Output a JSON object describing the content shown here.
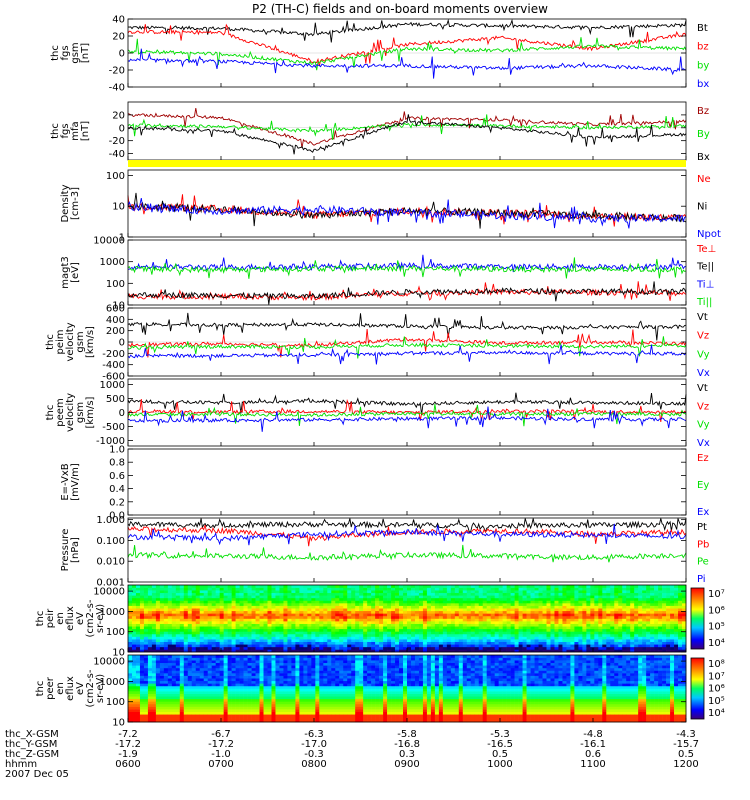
{
  "title": "P2 (TH-C) fields and on-board moments overview",
  "colors": {
    "black": "#000000",
    "red": "#ff0000",
    "green": "#00e000",
    "blue": "#0000ff",
    "darkred": "#a00000",
    "yellow": "#ffff00",
    "lightgreen": "#00ff00"
  },
  "chart_data": [
    {
      "id": "fgs-gsm",
      "type": "line",
      "ylabel": [
        "thc",
        "fgs",
        "gsm",
        "[nT]"
      ],
      "ylim": [
        -40,
        40
      ],
      "yticks": [
        "40",
        "20",
        "0",
        "-20",
        "-40"
      ],
      "legend_placement": "right",
      "series": [
        {
          "name": "Bt",
          "color": "#000000",
          "x": [
            "0600",
            "0700",
            "0800",
            "0900",
            "1000",
            "1100",
            "1200"
          ],
          "y": [
            30,
            29,
            22,
            34,
            32,
            30,
            33
          ]
        },
        {
          "name": "bz",
          "color": "#ff0000",
          "x": [
            "0600",
            "0700",
            "0800",
            "0900",
            "1000",
            "1100",
            "1200"
          ],
          "y": [
            25,
            24,
            -10,
            10,
            18,
            5,
            22
          ]
        },
        {
          "name": "by",
          "color": "#00e000",
          "x": [
            "0600",
            "0700",
            "0800",
            "0900",
            "1000",
            "1100",
            "1200"
          ],
          "y": [
            2,
            -1,
            -12,
            5,
            3,
            8,
            5
          ]
        },
        {
          "name": "bx",
          "color": "#0000ff",
          "x": [
            "0600",
            "0700",
            "0800",
            "0900",
            "1000",
            "1100",
            "1200"
          ],
          "y": [
            -8,
            -10,
            -15,
            -15,
            -18,
            -15,
            -20
          ]
        }
      ]
    },
    {
      "id": "fgs-mfa",
      "type": "line",
      "ylabel": [
        "thc",
        "fgs",
        "mfa",
        "[nT]"
      ],
      "ylim": [
        -50,
        40
      ],
      "yticks": [
        "20",
        "0",
        "-20",
        "-40"
      ],
      "legend_placement": "right",
      "series": [
        {
          "name": "Bz",
          "color": "#a00000",
          "x": [
            "0600",
            "0700",
            "0800",
            "0900",
            "1000",
            "1100",
            "1200"
          ],
          "y": [
            20,
            16,
            -25,
            15,
            12,
            5,
            10
          ]
        },
        {
          "name": "By",
          "color": "#00e000",
          "x": [
            "0600",
            "0700",
            "0800",
            "0900",
            "1000",
            "1100",
            "1200"
          ],
          "y": [
            4,
            2,
            -5,
            5,
            3,
            0,
            3
          ]
        },
        {
          "name": "Bx",
          "color": "#000000",
          "x": [
            "0600",
            "0700",
            "0800",
            "0900",
            "1000",
            "1100",
            "1200"
          ],
          "y": [
            0,
            -5,
            -35,
            10,
            0,
            -15,
            -10
          ]
        }
      ]
    },
    {
      "id": "flag-bar",
      "type": "bar",
      "color": "#ffff00"
    },
    {
      "id": "density",
      "type": "line",
      "yscale": "log",
      "ylabel": [
        "Density",
        "[cm-3]"
      ],
      "ylim": [
        1,
        150
      ],
      "yticks": [
        "100",
        "10",
        "1"
      ],
      "legend_placement": "right",
      "series": [
        {
          "name": "Ne",
          "color": "#ff0000",
          "x": [
            "0600",
            "0700",
            "0800",
            "0900",
            "1000",
            "1100",
            "1200"
          ],
          "y": [
            10,
            8,
            5,
            7,
            6,
            5,
            4
          ]
        },
        {
          "name": "Ni",
          "color": "#000000",
          "x": [
            "0600",
            "0700",
            "0800",
            "0900",
            "1000",
            "1100",
            "1200"
          ],
          "y": [
            10,
            8,
            5,
            7,
            6,
            5,
            4
          ]
        },
        {
          "name": "Npot",
          "color": "#0000ff",
          "x": [
            "0600",
            "0700",
            "0800",
            "0900",
            "1000",
            "1100",
            "1200"
          ],
          "y": [
            9,
            7,
            8,
            6,
            5,
            4,
            4
          ]
        }
      ]
    },
    {
      "id": "temperature",
      "type": "line",
      "yscale": "log",
      "ylabel": [
        "magt3",
        "[eV]"
      ],
      "ylim": [
        10,
        10000
      ],
      "yticks": [
        "10000",
        "1000",
        "100",
        "10"
      ],
      "legend_placement": "right",
      "series": [
        {
          "name": "Te⊥",
          "color": "#ff0000",
          "x": [
            "0600",
            "0700",
            "0800",
            "0900",
            "1000",
            "1100",
            "1200"
          ],
          "y": [
            25,
            25,
            22,
            35,
            40,
            38,
            35
          ]
        },
        {
          "name": "Te||",
          "color": "#000000",
          "x": [
            "0600",
            "0700",
            "0800",
            "0900",
            "1000",
            "1100",
            "1200"
          ],
          "y": [
            30,
            28,
            25,
            40,
            45,
            42,
            40
          ]
        },
        {
          "name": "Ti⊥",
          "color": "#0000ff",
          "x": [
            "0600",
            "0700",
            "0800",
            "0900",
            "1000",
            "1100",
            "1200"
          ],
          "y": [
            600,
            550,
            600,
            650,
            600,
            580,
            600
          ]
        },
        {
          "name": "Ti||",
          "color": "#00e000",
          "x": [
            "0600",
            "0700",
            "0800",
            "0900",
            "1000",
            "1100",
            "1200"
          ],
          "y": [
            450,
            420,
            480,
            500,
            450,
            430,
            450
          ]
        }
      ]
    },
    {
      "id": "peim-velocity",
      "type": "line",
      "ylabel": [
        "thc",
        "peim",
        "velocity",
        "gsm",
        "[km/s]"
      ],
      "ylim": [
        -600,
        600
      ],
      "yticks": [
        "600",
        "400",
        "200",
        "0",
        "-200",
        "-400",
        "-600"
      ],
      "legend_placement": "right",
      "series": [
        {
          "name": "Vt",
          "color": "#000000",
          "x": [
            "0600",
            "0700",
            "0800",
            "0900",
            "1000",
            "1100",
            "1200"
          ],
          "y": [
            320,
            300,
            310,
            280,
            250,
            260,
            270
          ]
        },
        {
          "name": "Vz",
          "color": "#ff0000",
          "x": [
            "0600",
            "0700",
            "0800",
            "0900",
            "1000",
            "1100",
            "1200"
          ],
          "y": [
            -50,
            -30,
            -60,
            50,
            -20,
            0,
            -30
          ]
        },
        {
          "name": "Vy",
          "color": "#00e000",
          "x": [
            "0600",
            "0700",
            "0800",
            "0900",
            "1000",
            "1100",
            "1200"
          ],
          "y": [
            -100,
            -80,
            -90,
            -50,
            -70,
            -80,
            -60
          ]
        },
        {
          "name": "Vx",
          "color": "#0000ff",
          "x": [
            "0600",
            "0700",
            "0800",
            "0900",
            "1000",
            "1100",
            "1200"
          ],
          "y": [
            -250,
            -240,
            -230,
            -200,
            -190,
            -200,
            -210
          ]
        }
      ]
    },
    {
      "id": "peem-velocity",
      "type": "line",
      "ylabel": [
        "thc",
        "peem",
        "velocity",
        "gsm",
        "[km/s]"
      ],
      "ylim": [
        -1200,
        1200
      ],
      "yticks": [
        "1000",
        "500",
        "0",
        "-500",
        "-1000"
      ],
      "legend_placement": "right",
      "series": [
        {
          "name": "Vt",
          "color": "#000000",
          "x": [
            "0600",
            "0700",
            "0800",
            "0900",
            "1000",
            "1100",
            "1200"
          ],
          "y": [
            400,
            350,
            420,
            300,
            380,
            350,
            320
          ]
        },
        {
          "name": "Vz",
          "color": "#ff0000",
          "x": [
            "0600",
            "0700",
            "0800",
            "0900",
            "1000",
            "1100",
            "1200"
          ],
          "y": [
            50,
            20,
            40,
            0,
            60,
            30,
            20
          ]
        },
        {
          "name": "Vy",
          "color": "#00e000",
          "x": [
            "0600",
            "0700",
            "0800",
            "0900",
            "1000",
            "1100",
            "1200"
          ],
          "y": [
            -80,
            -60,
            -90,
            -40,
            -60,
            -50,
            -70
          ]
        },
        {
          "name": "Vx",
          "color": "#0000ff",
          "x": [
            "0600",
            "0700",
            "0800",
            "0900",
            "1000",
            "1100",
            "1200"
          ],
          "y": [
            -300,
            -280,
            -260,
            -220,
            -200,
            -240,
            -250
          ]
        }
      ]
    },
    {
      "id": "efield",
      "type": "line",
      "ylabel": [
        "E=-VxB",
        "[mV/m]"
      ],
      "ylim": [
        0,
        1
      ],
      "yticks": [
        "1.0",
        "0.8",
        "0.6",
        "0.4",
        "0.2",
        "0.0"
      ],
      "legend_placement": "right",
      "series": [
        {
          "name": "Ez",
          "color": "#ff0000"
        },
        {
          "name": "Ey",
          "color": "#00e000"
        },
        {
          "name": "Ex",
          "color": "#0000ff"
        }
      ]
    },
    {
      "id": "pressure",
      "type": "line",
      "yscale": "log",
      "ylabel": [
        "Pressure",
        "[nPa]"
      ],
      "ylim": [
        0.001,
        1.2
      ],
      "yticks": [
        "1.000",
        "0.100",
        "0.010",
        "0.001"
      ],
      "legend_placement": "right",
      "series": [
        {
          "name": "Pt",
          "color": "#000000",
          "x": [
            "0600",
            "0700",
            "0800",
            "0900",
            "1000",
            "1100",
            "1200"
          ],
          "y": [
            0.6,
            0.55,
            0.6,
            0.55,
            0.5,
            0.55,
            0.6
          ]
        },
        {
          "name": "Pb",
          "color": "#ff0000",
          "x": [
            "0600",
            "0700",
            "0800",
            "0900",
            "1000",
            "1100",
            "1200"
          ],
          "y": [
            0.35,
            0.3,
            0.12,
            0.25,
            0.3,
            0.2,
            0.25
          ]
        },
        {
          "name": "Pe",
          "color": "#00e000",
          "x": [
            "0600",
            "0700",
            "0800",
            "0900",
            "1000",
            "1100",
            "1200"
          ],
          "y": [
            0.02,
            0.018,
            0.015,
            0.02,
            0.018,
            0.015,
            0.02
          ]
        },
        {
          "name": "Pi",
          "color": "#0000ff",
          "x": [
            "0600",
            "0700",
            "0800",
            "0900",
            "1000",
            "1100",
            "1200"
          ],
          "y": [
            0.15,
            0.12,
            0.2,
            0.25,
            0.2,
            0.18,
            0.15
          ]
        }
      ]
    },
    {
      "id": "peir-spectrogram",
      "type": "heatmap",
      "ylabel": [
        "thc",
        "peir",
        "en",
        "eflux",
        "eV",
        "(cm2-s-",
        "sr-eV)"
      ],
      "ylim": [
        10,
        20000
      ],
      "yscale": "log",
      "yticks": [
        "10000",
        "1000",
        "100",
        "10"
      ],
      "colorbar": {
        "ticks": [
          "10⁷",
          "10⁶",
          "10⁵",
          "10⁴"
        ],
        "range": [
          1000,
          20000000
        ]
      }
    },
    {
      "id": "peer-spectrogram",
      "type": "heatmap",
      "ylabel": [
        "thc",
        "peer",
        "en",
        "eflux",
        "eV",
        "(cm2-s-",
        "sr-eV)"
      ],
      "ylim": [
        10,
        20000
      ],
      "yscale": "log",
      "yticks": [
        "10000",
        "1000",
        "100",
        "10"
      ],
      "colorbar": {
        "ticks": [
          "10⁸",
          "10⁷",
          "10⁶",
          "10⁵",
          "10⁴"
        ],
        "range": [
          1000,
          200000000
        ]
      }
    }
  ],
  "x_axis": {
    "rows": [
      {
        "label": "thc_X-GSM",
        "values": [
          "-7.2",
          "-6.7",
          "-6.3",
          "-5.8",
          "-5.3",
          "-4.8",
          "-4.3"
        ]
      },
      {
        "label": "thc_Y-GSM",
        "values": [
          "-17.2",
          "-17.2",
          "-17.0",
          "-16.8",
          "-16.5",
          "-16.1",
          "-15.7"
        ]
      },
      {
        "label": "thc_Z-GSM",
        "values": [
          "-1.9",
          "-1.0",
          "-0.3",
          "0.3",
          "0.5",
          "0.6",
          "0.5"
        ]
      },
      {
        "label": "hhmm",
        "values": [
          "0600",
          "0700",
          "0800",
          "0900",
          "1000",
          "1100",
          "1200"
        ]
      }
    ],
    "date": "2007 Dec 05"
  }
}
